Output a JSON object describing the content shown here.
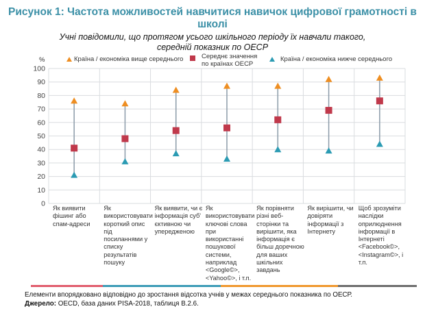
{
  "header": {
    "title": "Рисунок 1: Частота можливостей навчитися навичок цифрової грамотності в школі",
    "subtitle_line1": "Учні повідомили, що протягом усього шкільного періоду їх навчали такого,",
    "subtitle_line2": "середній показник по ОЕСР"
  },
  "legend": {
    "above": "Країна / економіка вище середнього",
    "mean_line1": "Середнє значення",
    "mean_line2": "по країнах ОЕСР",
    "below": "Країна / економіка нижче середнього"
  },
  "footer": {
    "note": "Елементи впорядковано відповідно до зростання відсотка учнів у межах середнього показника по ОЕСР.",
    "source_label": "Джерело:",
    "source_text": " OECD, база даних PISA-2018, таблиця B.2.6."
  },
  "colors": {
    "above": "#ee8e22",
    "mean": "#c0394b",
    "below": "#2b9bb3",
    "range_line": "#8a9aa8",
    "grid": "#d9dcdf",
    "title": "#3a8fa6",
    "bands": [
      "#e05a6a",
      "#3a9ab5",
      "#f0962a",
      "#6b6b6b"
    ]
  },
  "chart_data": {
    "type": "scatter",
    "title": "Рисунок 1: Частота можливостей навчитися навичок цифрової грамотності в школі",
    "ylabel": "%",
    "xlabel": "",
    "ylim": [
      0,
      100
    ],
    "yticks": [
      0,
      10,
      20,
      30,
      40,
      50,
      60,
      70,
      80,
      90,
      100
    ],
    "grid": true,
    "legend_position": "top",
    "categories": [
      "Як виявити фішинг або спам-адреси",
      "Як використовувати короткий опис під посиланнями у списку результатів пошуку",
      "Як виявити, чи є інформація суб' єктивною чи упередженою",
      "Як використовувати ключові слова при використанні пошукової системи, наприклад <Google©>, <Yahoo©>, і т.п.",
      "Як порівняти різні веб-сторінки та вирішити, яка інформація є більш доречною для ваших шкільних завдань",
      "Як вирішити, чи довіряти інформації з Інтернету",
      "Щоб зрозуміти наслідки оприлюднення інформації в Інтернеті <Facebook©>, <Instagram©>, і т.п."
    ],
    "series": [
      {
        "name": "Країна / економіка вище середнього",
        "marker": "triangle-orange",
        "values": [
          76,
          74,
          84,
          87,
          87,
          92,
          93
        ]
      },
      {
        "name": "Середнє значення по країнах ОЕСР",
        "marker": "square-red",
        "values": [
          41,
          48,
          54,
          56,
          62,
          69,
          76
        ]
      },
      {
        "name": "Країна / економіка нижче середнього",
        "marker": "triangle-blue",
        "values": [
          21,
          31,
          37,
          33,
          40,
          39,
          44
        ]
      }
    ]
  }
}
